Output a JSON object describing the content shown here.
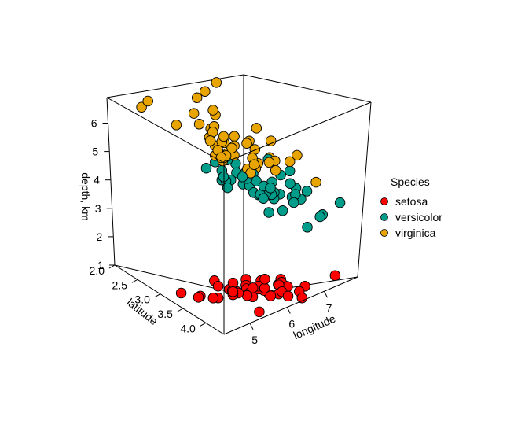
{
  "chart_data": {
    "type": "scatter",
    "projection": "3d",
    "x_axis": {
      "label": "longitude",
      "ticks": [
        "5",
        "6",
        "7"
      ],
      "range": [
        4.3,
        7.9
      ]
    },
    "y_axis": {
      "label": "latitude",
      "ticks": [
        "2.0",
        "2.5",
        "3.0",
        "3.5",
        "4.0"
      ],
      "range": [
        2.0,
        4.4
      ]
    },
    "z_axis": {
      "label": "depth, km",
      "ticks": [
        "1",
        "2",
        "3",
        "4",
        "5",
        "6"
      ],
      "range": [
        1.0,
        6.9
      ]
    },
    "legend": {
      "title": "Species",
      "placement": "right",
      "entries": [
        {
          "name": "setosa",
          "color": "#FF0000"
        },
        {
          "name": "versicolor",
          "color": "#009E8A"
        },
        {
          "name": "virginica",
          "color": "#E8A400"
        }
      ]
    },
    "grid": false,
    "series": [
      {
        "name": "setosa",
        "color": "#FF0000",
        "points": [
          [
            5.1,
            3.5,
            1.4
          ],
          [
            4.9,
            3.0,
            1.4
          ],
          [
            4.7,
            3.2,
            1.3
          ],
          [
            4.6,
            3.1,
            1.5
          ],
          [
            5.0,
            3.6,
            1.4
          ],
          [
            5.4,
            3.9,
            1.7
          ],
          [
            4.6,
            3.4,
            1.4
          ],
          [
            5.0,
            3.4,
            1.5
          ],
          [
            4.4,
            2.9,
            1.4
          ],
          [
            4.9,
            3.1,
            1.5
          ],
          [
            5.4,
            3.7,
            1.5
          ],
          [
            4.8,
            3.4,
            1.6
          ],
          [
            4.8,
            3.0,
            1.4
          ],
          [
            4.3,
            3.0,
            1.1
          ],
          [
            5.8,
            4.0,
            1.2
          ],
          [
            5.7,
            4.4,
            1.5
          ],
          [
            5.4,
            3.9,
            1.3
          ],
          [
            5.1,
            3.5,
            1.4
          ],
          [
            5.7,
            3.8,
            1.7
          ],
          [
            5.1,
            3.8,
            1.5
          ],
          [
            5.4,
            3.4,
            1.7
          ],
          [
            5.1,
            3.7,
            1.5
          ],
          [
            4.6,
            3.6,
            1.0
          ],
          [
            5.1,
            3.3,
            1.7
          ],
          [
            4.8,
            3.4,
            1.9
          ],
          [
            5.0,
            3.0,
            1.6
          ],
          [
            5.0,
            3.4,
            1.6
          ],
          [
            5.2,
            3.5,
            1.5
          ],
          [
            5.2,
            3.4,
            1.4
          ],
          [
            4.7,
            3.2,
            1.6
          ],
          [
            4.8,
            3.1,
            1.6
          ],
          [
            5.4,
            3.4,
            1.5
          ],
          [
            5.2,
            4.1,
            1.5
          ],
          [
            5.5,
            4.2,
            1.4
          ],
          [
            4.9,
            3.1,
            1.5
          ],
          [
            5.0,
            3.2,
            1.2
          ],
          [
            5.5,
            3.5,
            1.3
          ],
          [
            4.4,
            3.0,
            1.3
          ],
          [
            5.1,
            3.4,
            1.5
          ],
          [
            5.0,
            3.5,
            1.3
          ],
          [
            4.5,
            2.3,
            1.3
          ],
          [
            4.4,
            3.2,
            1.3
          ],
          [
            5.0,
            3.5,
            1.6
          ],
          [
            5.1,
            3.8,
            1.9
          ],
          [
            4.8,
            3.0,
            1.4
          ],
          [
            5.1,
            3.8,
            1.6
          ],
          [
            4.6,
            3.2,
            1.4
          ],
          [
            5.3,
            3.7,
            1.5
          ],
          [
            5.0,
            3.3,
            1.4
          ]
        ]
      },
      {
        "name": "versicolor",
        "color": "#009E8A",
        "points": [
          [
            7.0,
            3.2,
            4.7
          ],
          [
            6.4,
            3.2,
            4.5
          ],
          [
            6.9,
            3.1,
            4.9
          ],
          [
            5.5,
            2.3,
            4.0
          ],
          [
            6.5,
            2.8,
            4.6
          ],
          [
            5.7,
            2.8,
            4.5
          ],
          [
            6.3,
            3.3,
            4.7
          ],
          [
            4.9,
            2.4,
            3.3
          ],
          [
            6.6,
            2.9,
            4.6
          ],
          [
            5.2,
            2.7,
            3.9
          ],
          [
            5.0,
            2.0,
            3.5
          ],
          [
            5.9,
            3.0,
            4.2
          ],
          [
            6.0,
            2.2,
            4.0
          ],
          [
            6.1,
            2.9,
            4.7
          ],
          [
            5.6,
            2.9,
            3.6
          ],
          [
            6.7,
            3.1,
            4.4
          ],
          [
            5.6,
            3.0,
            4.5
          ],
          [
            5.8,
            2.7,
            4.1
          ],
          [
            6.2,
            2.2,
            4.5
          ],
          [
            5.6,
            2.5,
            3.9
          ],
          [
            5.9,
            3.2,
            4.8
          ],
          [
            6.1,
            2.8,
            4.0
          ],
          [
            6.3,
            2.5,
            4.9
          ],
          [
            6.4,
            2.9,
            4.3
          ],
          [
            6.6,
            3.0,
            4.4
          ],
          [
            6.8,
            2.8,
            4.8
          ],
          [
            6.7,
            3.0,
            5.0
          ],
          [
            6.0,
            2.9,
            4.5
          ],
          [
            5.7,
            2.6,
            3.5
          ],
          [
            5.5,
            2.4,
            3.8
          ],
          [
            5.8,
            2.7,
            3.9
          ],
          [
            6.0,
            2.7,
            5.1
          ],
          [
            5.4,
            3.0,
            4.5
          ],
          [
            6.0,
            3.4,
            4.5
          ],
          [
            6.7,
            3.1,
            4.7
          ],
          [
            6.3,
            2.3,
            4.4
          ],
          [
            5.6,
            3.0,
            4.1
          ],
          [
            5.5,
            2.5,
            4.0
          ],
          [
            5.5,
            2.6,
            4.4
          ],
          [
            6.1,
            3.0,
            4.6
          ],
          [
            5.8,
            2.6,
            4.0
          ],
          [
            5.0,
            2.3,
            3.3
          ],
          [
            5.7,
            3.0,
            4.2
          ],
          [
            5.7,
            2.9,
            4.2
          ],
          [
            6.2,
            2.9,
            4.3
          ],
          [
            5.1,
            2.5,
            3.0
          ],
          [
            5.7,
            2.8,
            4.1
          ]
        ]
      },
      {
        "name": "virginica",
        "color": "#E8A400",
        "points": [
          [
            6.3,
            3.3,
            6.0
          ],
          [
            5.8,
            2.7,
            5.1
          ],
          [
            7.1,
            3.0,
            5.9
          ],
          [
            6.3,
            2.9,
            5.6
          ],
          [
            6.5,
            3.0,
            5.8
          ],
          [
            7.6,
            3.0,
            6.6
          ],
          [
            4.9,
            2.5,
            4.5
          ],
          [
            7.3,
            2.9,
            6.3
          ],
          [
            6.7,
            2.5,
            5.8
          ],
          [
            7.2,
            3.6,
            6.1
          ],
          [
            6.5,
            3.2,
            5.1
          ],
          [
            6.4,
            2.7,
            5.3
          ],
          [
            6.8,
            3.0,
            5.5
          ],
          [
            5.7,
            2.5,
            5.0
          ],
          [
            5.8,
            2.8,
            5.1
          ],
          [
            6.4,
            3.2,
            5.3
          ],
          [
            6.5,
            3.0,
            5.5
          ],
          [
            7.7,
            3.8,
            6.7
          ],
          [
            7.7,
            2.6,
            6.9
          ],
          [
            6.0,
            2.2,
            5.0
          ],
          [
            6.9,
            3.2,
            5.7
          ],
          [
            5.6,
            2.8,
            4.9
          ],
          [
            7.7,
            2.8,
            6.7
          ],
          [
            6.3,
            2.7,
            4.9
          ],
          [
            6.7,
            3.3,
            5.7
          ],
          [
            7.2,
            3.2,
            6.0
          ],
          [
            6.2,
            2.8,
            4.8
          ],
          [
            6.1,
            3.0,
            4.9
          ],
          [
            6.4,
            2.8,
            5.6
          ],
          [
            7.2,
            3.0,
            5.8
          ],
          [
            7.4,
            2.8,
            6.1
          ],
          [
            7.9,
            3.8,
            6.4
          ],
          [
            6.3,
            2.8,
            5.1
          ],
          [
            6.1,
            2.6,
            5.6
          ],
          [
            7.7,
            3.0,
            6.1
          ],
          [
            6.3,
            3.4,
            5.6
          ],
          [
            6.4,
            3.1,
            5.5
          ],
          [
            6.0,
            3.0,
            4.8
          ],
          [
            6.9,
            3.1,
            5.4
          ],
          [
            6.7,
            3.1,
            5.6
          ],
          [
            6.9,
            3.1,
            5.1
          ],
          [
            6.8,
            3.2,
            5.9
          ],
          [
            6.7,
            3.3,
            5.7
          ],
          [
            6.7,
            3.0,
            5.2
          ],
          [
            6.3,
            2.5,
            5.0
          ],
          [
            6.5,
            3.0,
            5.2
          ],
          [
            6.2,
            3.4,
            5.4
          ],
          [
            5.9,
            3.0,
            5.1
          ]
        ]
      }
    ]
  }
}
